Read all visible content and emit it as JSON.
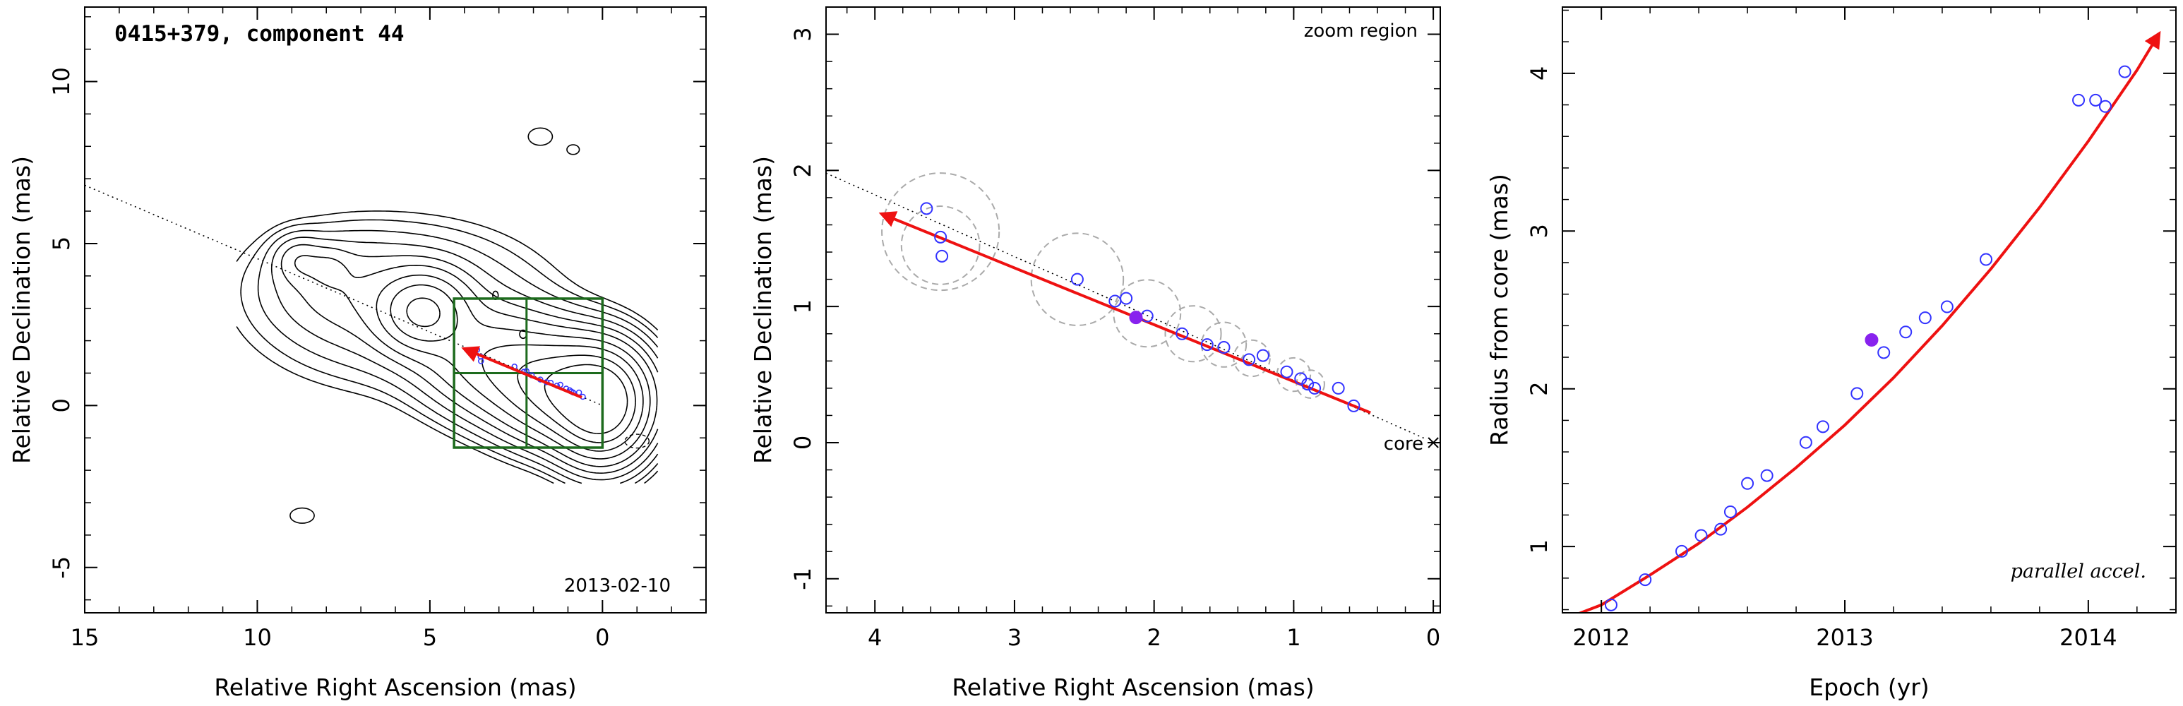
{
  "chart_data": [
    {
      "type": "contour",
      "title": "0415+379, component 44",
      "date_label": "2013-02-10",
      "xlabel": "Relative Right Ascension (mas)",
      "ylabel": "Relative Declination (mas)",
      "xlim": [
        15,
        -3
      ],
      "ylim": [
        -6.4,
        12.3
      ],
      "xticks": [
        15,
        10,
        5,
        0
      ],
      "yticks": [
        -5,
        0,
        5,
        10
      ],
      "jet_line": {
        "from": [
          15,
          6.8
        ],
        "to": [
          0,
          0
        ]
      },
      "zoom_box": {
        "x": [
          4.3,
          0
        ],
        "y": [
          -1.3,
          3.3
        ],
        "divider_x": 2.2,
        "divider_y": 1.0
      },
      "velocity_arrow": {
        "from": [
          0.6,
          0.25
        ],
        "to": [
          4.0,
          1.75
        ]
      }
    },
    {
      "type": "scatter",
      "corner_label": "zoom region",
      "core_label": "core",
      "xlabel": "Relative Right Ascension (mas)",
      "ylabel": "Relative Declination (mas)",
      "xlim": [
        4.35,
        -0.05
      ],
      "ylim": [
        -1.25,
        3.2
      ],
      "xticks": [
        4,
        3,
        2,
        1,
        0
      ],
      "yticks": [
        -1,
        0,
        1,
        2,
        3
      ],
      "points": [
        {
          "x": 3.63,
          "y": 1.72
        },
        {
          "x": 3.53,
          "y": 1.51
        },
        {
          "x": 3.52,
          "y": 1.37
        },
        {
          "x": 2.55,
          "y": 1.2
        },
        {
          "x": 2.28,
          "y": 1.04
        },
        {
          "x": 2.2,
          "y": 1.06
        },
        {
          "x": 2.05,
          "y": 0.93
        },
        {
          "x": 1.8,
          "y": 0.8
        },
        {
          "x": 1.62,
          "y": 0.72
        },
        {
          "x": 1.5,
          "y": 0.7
        },
        {
          "x": 1.32,
          "y": 0.61
        },
        {
          "x": 1.22,
          "y": 0.64
        },
        {
          "x": 1.05,
          "y": 0.52
        },
        {
          "x": 0.95,
          "y": 0.47
        },
        {
          "x": 0.9,
          "y": 0.43
        },
        {
          "x": 0.85,
          "y": 0.4
        },
        {
          "x": 0.68,
          "y": 0.4
        },
        {
          "x": 0.57,
          "y": 0.27
        }
      ],
      "highlight": {
        "x": 2.13,
        "y": 0.92
      },
      "error_circles": [
        {
          "x": 3.53,
          "y": 1.55,
          "r": 0.42
        },
        {
          "x": 3.53,
          "y": 1.45,
          "r": 0.28
        },
        {
          "x": 2.55,
          "y": 1.2,
          "r": 0.33
        },
        {
          "x": 2.05,
          "y": 0.95,
          "r": 0.24
        },
        {
          "x": 1.72,
          "y": 0.8,
          "r": 0.2
        },
        {
          "x": 1.5,
          "y": 0.72,
          "r": 0.16
        },
        {
          "x": 1.3,
          "y": 0.62,
          "r": 0.13
        },
        {
          "x": 1.0,
          "y": 0.5,
          "r": 0.12
        },
        {
          "x": 0.88,
          "y": 0.43,
          "r": 0.1
        }
      ],
      "jet_line": {
        "from": [
          4.35,
          1.98
        ],
        "to": [
          0.06,
          0.03
        ]
      },
      "velocity_arrow": {
        "from": [
          0.45,
          0.22
        ],
        "to": [
          3.95,
          1.68
        ]
      }
    },
    {
      "type": "scatter",
      "corner_label": "parallel accel.",
      "xlabel": "Epoch (yr)",
      "ylabel": "Radius from core (mas)",
      "xlim": [
        2011.84,
        2014.36
      ],
      "ylim": [
        0.58,
        4.42
      ],
      "xticks": [
        2012,
        2013,
        2014
      ],
      "yticks": [
        1,
        2,
        3,
        4
      ],
      "points": [
        {
          "x": 2012.04,
          "y": 0.63
        },
        {
          "x": 2012.18,
          "y": 0.79
        },
        {
          "x": 2012.33,
          "y": 0.97
        },
        {
          "x": 2012.41,
          "y": 1.07
        },
        {
          "x": 2012.49,
          "y": 1.11
        },
        {
          "x": 2012.53,
          "y": 1.22
        },
        {
          "x": 2012.6,
          "y": 1.4
        },
        {
          "x": 2012.68,
          "y": 1.45
        },
        {
          "x": 2012.84,
          "y": 1.66
        },
        {
          "x": 2012.91,
          "y": 1.76
        },
        {
          "x": 2013.05,
          "y": 1.97
        },
        {
          "x": 2013.16,
          "y": 2.23
        },
        {
          "x": 2013.25,
          "y": 2.36
        },
        {
          "x": 2013.33,
          "y": 2.45
        },
        {
          "x": 2013.42,
          "y": 2.52
        },
        {
          "x": 2013.58,
          "y": 2.82
        },
        {
          "x": 2013.96,
          "y": 3.83
        },
        {
          "x": 2014.03,
          "y": 3.83
        },
        {
          "x": 2014.07,
          "y": 3.79
        },
        {
          "x": 2014.15,
          "y": 4.01
        }
      ],
      "highlight": {
        "x": 2013.11,
        "y": 2.31
      },
      "fit_curve": [
        [
          2011.84,
          0.5
        ],
        [
          2012.0,
          0.63
        ],
        [
          2012.2,
          0.82
        ],
        [
          2012.4,
          1.02
        ],
        [
          2012.6,
          1.25
        ],
        [
          2012.8,
          1.5
        ],
        [
          2013.0,
          1.77
        ],
        [
          2013.2,
          2.07
        ],
        [
          2013.4,
          2.4
        ],
        [
          2013.6,
          2.76
        ],
        [
          2013.8,
          3.15
        ],
        [
          2014.0,
          3.57
        ],
        [
          2014.2,
          4.02
        ],
        [
          2014.29,
          4.25
        ]
      ]
    }
  ],
  "colors": {
    "axes": "#000000",
    "contour": "#000000",
    "zoom_box": "#1d6b1d",
    "arrow": "#ee1111",
    "points": "#3333ff",
    "highlight": "#8822ee",
    "error_circle": "#aaaaaa"
  }
}
